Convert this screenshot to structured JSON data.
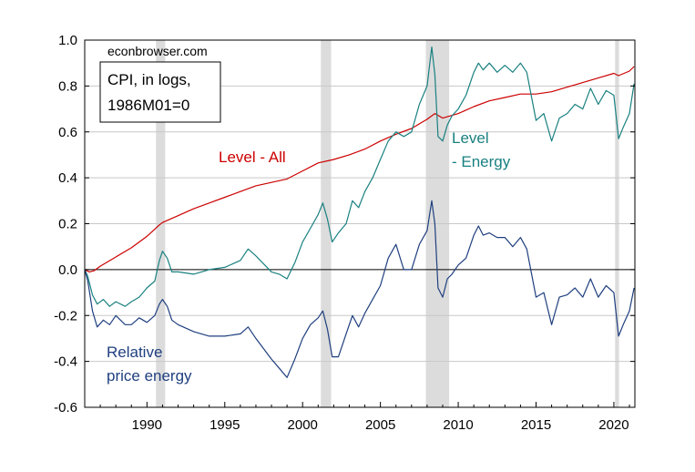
{
  "chart_data": {
    "type": "line",
    "source": "econbrowser.com",
    "legend_box": [
      "CPI, in logs,",
      "1986M01=0"
    ],
    "ylim": [
      -0.6,
      1.0
    ],
    "xlim": [
      1986.0,
      2021.35
    ],
    "yticks": [
      -0.6,
      -0.4,
      -0.2,
      0.0,
      0.2,
      0.4,
      0.6,
      0.8,
      1.0
    ],
    "ytick_labels": [
      "-0.6",
      "-0.4",
      "-0.2",
      "0.0",
      "0.2",
      "0.4",
      "0.6",
      "0.8",
      "1.0"
    ],
    "xticks": [
      1990,
      1995,
      2000,
      2005,
      2010,
      2015,
      2020
    ],
    "xtick_labels": [
      "1990",
      "1995",
      "2000",
      "2005",
      "2010",
      "2015",
      "2020"
    ],
    "grid": "horizontal",
    "zero_line": true,
    "recessions": [
      [
        1990.58,
        1991.17
      ],
      [
        2001.17,
        2001.83
      ],
      [
        2007.92,
        2009.42
      ],
      [
        2020.08,
        2020.33
      ]
    ],
    "series": [
      {
        "name": "Level - All",
        "label_lines": [
          "Level - All"
        ],
        "color": "#cc0000",
        "x": [
          1986.0,
          1986.3,
          1986.6,
          1987.0,
          1988.0,
          1989.0,
          1990.0,
          1990.8,
          1991.0,
          1992.0,
          1993.0,
          1994.0,
          1995.0,
          1996.0,
          1997.0,
          1998.0,
          1999.0,
          2000.0,
          2001.0,
          2002.0,
          2003.0,
          2004.0,
          2005.0,
          2006.0,
          2007.0,
          2008.0,
          2008.5,
          2009.0,
          2010.0,
          2011.0,
          2012.0,
          2013.0,
          2014.0,
          2015.0,
          2016.0,
          2017.0,
          2018.0,
          2019.0,
          2020.0,
          2020.3,
          2021.0,
          2021.3
        ],
        "y": [
          0.0,
          -0.01,
          -0.005,
          0.015,
          0.055,
          0.095,
          0.145,
          0.195,
          0.205,
          0.235,
          0.265,
          0.29,
          0.315,
          0.34,
          0.365,
          0.38,
          0.395,
          0.43,
          0.465,
          0.48,
          0.5,
          0.525,
          0.56,
          0.59,
          0.615,
          0.655,
          0.68,
          0.66,
          0.68,
          0.71,
          0.735,
          0.75,
          0.765,
          0.765,
          0.775,
          0.795,
          0.815,
          0.835,
          0.855,
          0.845,
          0.865,
          0.885
        ]
      },
      {
        "name": "Level - Energy",
        "label_lines": [
          "Level",
          "- Energy"
        ],
        "color": "#1a8080",
        "x": [
          1986.0,
          1986.2,
          1986.5,
          1986.8,
          1987.2,
          1987.6,
          1988.0,
          1988.6,
          1989.0,
          1989.5,
          1990.0,
          1990.5,
          1990.8,
          1991.0,
          1991.3,
          1991.6,
          1992.0,
          1993.0,
          1994.0,
          1995.0,
          1996.0,
          1996.5,
          1997.0,
          1998.0,
          1998.5,
          1999.0,
          1999.5,
          2000.0,
          2000.5,
          2001.0,
          2001.3,
          2001.6,
          2001.9,
          2002.3,
          2002.8,
          2003.2,
          2003.6,
          2004.0,
          2004.5,
          2005.0,
          2005.5,
          2006.0,
          2006.5,
          2007.0,
          2007.5,
          2008.0,
          2008.3,
          2008.5,
          2008.7,
          2009.0,
          2009.3,
          2009.6,
          2010.0,
          2010.5,
          2011.0,
          2011.3,
          2011.6,
          2012.0,
          2012.5,
          2013.0,
          2013.5,
          2014.0,
          2014.4,
          2014.8,
          2015.0,
          2015.5,
          2016.0,
          2016.5,
          2017.0,
          2017.5,
          2018.0,
          2018.5,
          2019.0,
          2019.5,
          2020.0,
          2020.3,
          2020.6,
          2021.0,
          2021.3
        ],
        "y": [
          0.0,
          -0.03,
          -0.11,
          -0.15,
          -0.13,
          -0.16,
          -0.14,
          -0.16,
          -0.14,
          -0.12,
          -0.08,
          -0.05,
          0.04,
          0.08,
          0.05,
          -0.01,
          -0.01,
          -0.02,
          0.0,
          0.01,
          0.04,
          0.09,
          0.06,
          -0.01,
          -0.02,
          -0.04,
          0.03,
          0.12,
          0.18,
          0.24,
          0.29,
          0.22,
          0.12,
          0.16,
          0.2,
          0.3,
          0.27,
          0.34,
          0.4,
          0.48,
          0.56,
          0.6,
          0.58,
          0.6,
          0.72,
          0.8,
          0.97,
          0.85,
          0.58,
          0.56,
          0.63,
          0.67,
          0.7,
          0.76,
          0.86,
          0.9,
          0.87,
          0.9,
          0.86,
          0.89,
          0.86,
          0.9,
          0.86,
          0.72,
          0.65,
          0.68,
          0.56,
          0.66,
          0.68,
          0.72,
          0.7,
          0.79,
          0.72,
          0.78,
          0.76,
          0.57,
          0.62,
          0.68,
          0.81
        ]
      },
      {
        "name": "Relative price energy",
        "label_lines": [
          "Relative",
          "price energy"
        ],
        "color": "#1f3f7f",
        "x": [
          1986.0,
          1986.2,
          1986.5,
          1986.8,
          1987.2,
          1987.6,
          1988.0,
          1988.6,
          1989.0,
          1989.5,
          1990.0,
          1990.5,
          1990.8,
          1991.0,
          1991.3,
          1991.6,
          1992.0,
          1993.0,
          1994.0,
          1995.0,
          1996.0,
          1996.5,
          1997.0,
          1998.0,
          1998.5,
          1999.0,
          1999.5,
          2000.0,
          2000.5,
          2001.0,
          2001.3,
          2001.6,
          2001.9,
          2002.3,
          2002.8,
          2003.2,
          2003.6,
          2004.0,
          2004.5,
          2005.0,
          2005.5,
          2006.0,
          2006.5,
          2007.0,
          2007.5,
          2008.0,
          2008.3,
          2008.5,
          2008.7,
          2009.0,
          2009.3,
          2009.6,
          2010.0,
          2010.5,
          2011.0,
          2011.3,
          2011.6,
          2012.0,
          2012.5,
          2013.0,
          2013.5,
          2014.0,
          2014.4,
          2014.8,
          2015.0,
          2015.5,
          2016.0,
          2016.5,
          2017.0,
          2017.5,
          2018.0,
          2018.5,
          2019.0,
          2019.5,
          2020.0,
          2020.3,
          2020.6,
          2021.0,
          2021.3
        ],
        "y": [
          0.0,
          -0.05,
          -0.18,
          -0.25,
          -0.22,
          -0.24,
          -0.2,
          -0.24,
          -0.24,
          -0.21,
          -0.23,
          -0.2,
          -0.15,
          -0.13,
          -0.16,
          -0.22,
          -0.24,
          -0.27,
          -0.29,
          -0.29,
          -0.28,
          -0.25,
          -0.3,
          -0.39,
          -0.43,
          -0.47,
          -0.39,
          -0.3,
          -0.24,
          -0.21,
          -0.18,
          -0.26,
          -0.38,
          -0.38,
          -0.28,
          -0.2,
          -0.25,
          -0.19,
          -0.13,
          -0.07,
          0.05,
          0.11,
          0.0,
          0.0,
          0.11,
          0.17,
          0.3,
          0.2,
          -0.08,
          -0.12,
          -0.04,
          -0.02,
          0.02,
          0.05,
          0.15,
          0.19,
          0.15,
          0.16,
          0.14,
          0.14,
          0.1,
          0.14,
          0.09,
          -0.05,
          -0.12,
          -0.1,
          -0.24,
          -0.12,
          -0.11,
          -0.08,
          -0.12,
          -0.04,
          -0.12,
          -0.07,
          -0.1,
          -0.29,
          -0.24,
          -0.18,
          -0.08
        ]
      }
    ]
  }
}
